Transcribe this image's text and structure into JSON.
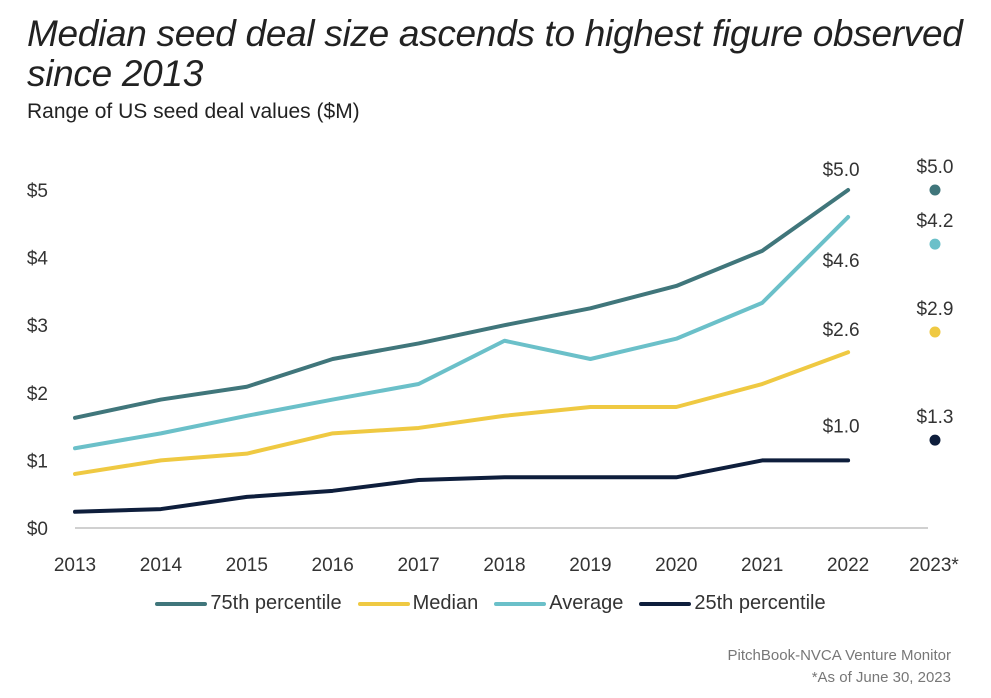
{
  "header": {
    "title": "Median seed deal size ascends to highest figure observed since 2013",
    "subtitle": "Range of US seed deal values ($M)"
  },
  "footer": {
    "source": "PitchBook-NVCA Venture Monitor",
    "note": "*As of June 30, 2023"
  },
  "chart_data": {
    "type": "line",
    "title": "Median seed deal size ascends to highest figure observed since 2013",
    "subtitle": "Range of US seed deal values ($M)",
    "xlabel": "",
    "ylabel": "",
    "ylim": [
      0,
      5
    ],
    "yticks": [
      0,
      1,
      2,
      3,
      4,
      5
    ],
    "ytick_labels": [
      "$0",
      "$1",
      "$2",
      "$3",
      "$4",
      "$5"
    ],
    "categories": [
      "2013",
      "2014",
      "2015",
      "2016",
      "2017",
      "2018",
      "2019",
      "2020",
      "2021",
      "2022",
      "2023*"
    ],
    "grid": false,
    "legend_position": "bottom",
    "series": [
      {
        "name": "75th percentile",
        "color": "#40767b",
        "values": [
          1.63,
          1.9,
          2.09,
          2.5,
          2.73,
          3.0,
          3.25,
          3.58,
          4.1,
          5.0
        ],
        "end_label": "$5.0",
        "ytd_value": 5.0,
        "ytd_label": "$5.0"
      },
      {
        "name": "Median",
        "color": "#efc942",
        "values": [
          0.8,
          1.0,
          1.1,
          1.4,
          1.48,
          1.66,
          1.79,
          1.79,
          2.13,
          2.6
        ],
        "end_label": "$2.6",
        "ytd_value": 2.9,
        "ytd_label": "$2.9"
      },
      {
        "name": "Average",
        "color": "#6bc0c9",
        "values": [
          1.18,
          1.4,
          1.66,
          1.9,
          2.13,
          2.77,
          2.5,
          2.8,
          3.33,
          4.6
        ],
        "end_label": "$4.6",
        "ytd_value": 4.2,
        "ytd_label": "$4.2"
      },
      {
        "name": "25th percentile",
        "color": "#0e1e3c",
        "values": [
          0.24,
          0.28,
          0.46,
          0.55,
          0.71,
          0.75,
          0.75,
          0.75,
          1.0,
          1.0
        ],
        "end_label": "$1.0",
        "ytd_value": 1.3,
        "ytd_label": "$1.3"
      }
    ],
    "baseline_color": "#d0d0d0"
  }
}
